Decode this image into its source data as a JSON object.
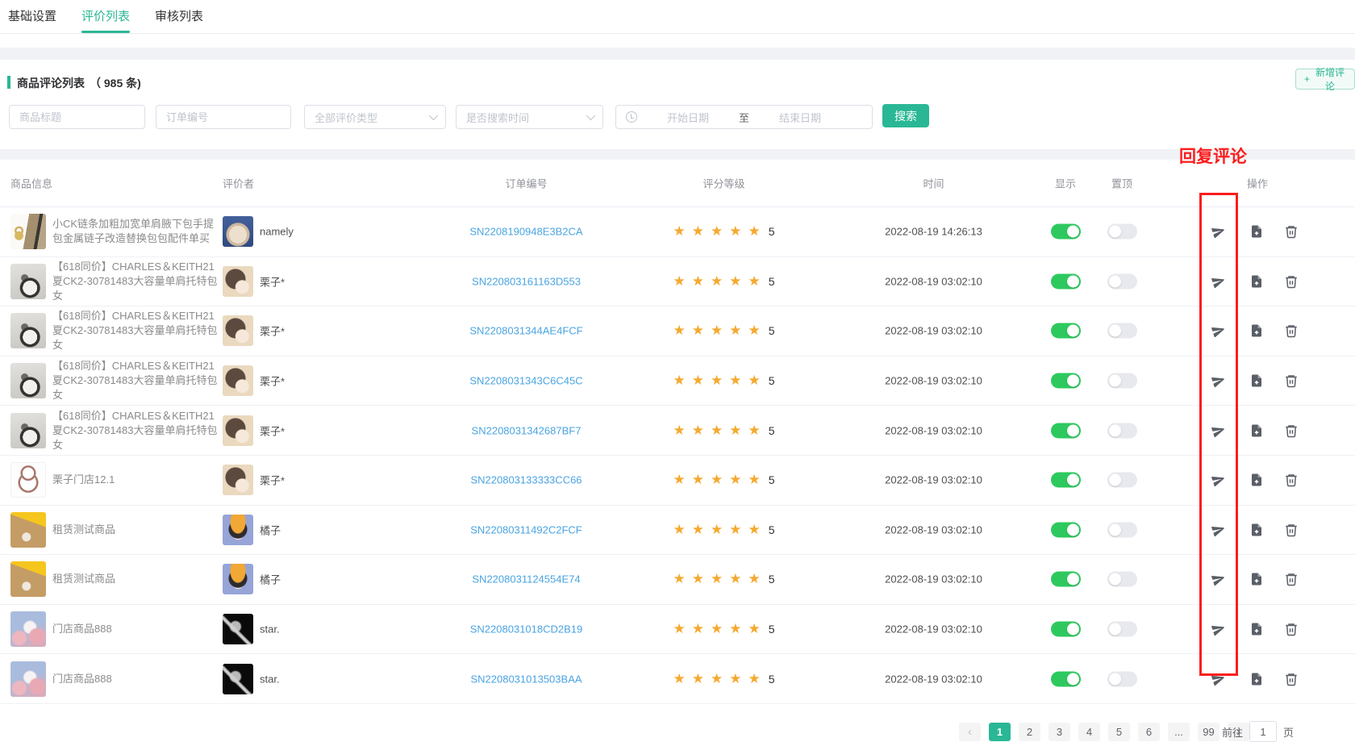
{
  "colors": {
    "accent_teal": "#2ab795",
    "toggle_on_green": "#2dc95f",
    "order_link_blue": "#4aa4e2",
    "star_orange": "#f5a92f",
    "annotation_red": "#fb1d1d"
  },
  "tabs": [
    {
      "label": "基础设置",
      "active": false
    },
    {
      "label": "评价列表",
      "active": true
    },
    {
      "label": "审核列表",
      "active": false
    }
  ],
  "panel": {
    "title": "商品评论列表",
    "count": "（ 985 条)",
    "add_button_plus": "+",
    "add_button": "新增评论"
  },
  "filters": {
    "product_title_placeholder": "商品标题",
    "order_no_placeholder": "订单编号",
    "type_select_value": "全部评价类型",
    "time_select_value": "是否搜索时间",
    "start_date_placeholder": "开始日期",
    "date_separator": "至",
    "end_date_placeholder": "结束日期",
    "search_label": "搜索"
  },
  "annotation": {
    "label": "回复评论"
  },
  "table": {
    "headers": [
      "商品信息",
      "评价者",
      "订单编号",
      "评分等级",
      "时间",
      "显示",
      "置顶",
      "操作"
    ],
    "rows": [
      {
        "title": "小CK链条加粗加宽单肩腋下包手提包金属链子改造替换包包配件单买",
        "image": "chain-bag",
        "avatar": "cat",
        "name": "namely",
        "order": "SN2208190948E3B2CA",
        "stars": 5,
        "score": "5",
        "time": "2022-08-19 14:26:13",
        "show": true,
        "pin": false
      },
      {
        "title": "【618同价】CHARLES＆KEITH21夏CK2-30781483大容量单肩托特包女",
        "image": "tote-bag",
        "avatar": "chestnut",
        "name": "栗子*",
        "order": "SN220803161163D553",
        "stars": 5,
        "score": "5",
        "time": "2022-08-19 03:02:10",
        "show": true,
        "pin": false
      },
      {
        "title": "【618同价】CHARLES＆KEITH21夏CK2-30781483大容量单肩托特包女",
        "image": "tote-bag",
        "avatar": "chestnut",
        "name": "栗子*",
        "order": "SN2208031344AE4FCF",
        "stars": 5,
        "score": "5",
        "time": "2022-08-19 03:02:10",
        "show": true,
        "pin": false
      },
      {
        "title": "【618同价】CHARLES＆KEITH21夏CK2-30781483大容量单肩托特包女",
        "image": "tote-bag",
        "avatar": "chestnut",
        "name": "栗子*",
        "order": "SN2208031343C6C45C",
        "stars": 5,
        "score": "5",
        "time": "2022-08-19 03:02:10",
        "show": true,
        "pin": false
      },
      {
        "title": "【618同价】CHARLES＆KEITH21夏CK2-30781483大容量单肩托特包女",
        "image": "tote-bag",
        "avatar": "chestnut",
        "name": "栗子*",
        "order": "SN2208031342687BF7",
        "stars": 5,
        "score": "5",
        "time": "2022-08-19 03:02:10",
        "show": true,
        "pin": false
      },
      {
        "title": "栗子门店12.1",
        "image": "bunny",
        "avatar": "chestnut",
        "name": "栗子*",
        "order": "SN220803133333CC66",
        "stars": 5,
        "score": "5",
        "time": "2022-08-19 03:02:10",
        "show": true,
        "pin": false
      },
      {
        "title": "租赁测试商品",
        "image": "sand",
        "avatar": "orange",
        "name": "橘子",
        "order": "SN22080311492C2FCF",
        "stars": 5,
        "score": "5",
        "time": "2022-08-19 03:02:10",
        "show": true,
        "pin": false
      },
      {
        "title": "租赁测试商品",
        "image": "sand",
        "avatar": "orange",
        "name": "橘子",
        "order": "SN2208031124554E74",
        "stars": 5,
        "score": "5",
        "time": "2022-08-19 03:02:10",
        "show": true,
        "pin": false
      },
      {
        "title": "门店商品888",
        "image": "clouds",
        "avatar": "dark",
        "name": "star.",
        "order": "SN2208031018CD2B19",
        "stars": 5,
        "score": "5",
        "time": "2022-08-19 03:02:10",
        "show": true,
        "pin": false
      },
      {
        "title": "门店商品888",
        "image": "clouds",
        "avatar": "dark",
        "name": "star.",
        "order": "SN2208031013503BAA",
        "stars": 5,
        "score": "5",
        "time": "2022-08-19 03:02:10",
        "show": true,
        "pin": false
      }
    ]
  },
  "pagination": {
    "prev": "‹",
    "next": "›",
    "pages": [
      "1",
      "2",
      "3",
      "4",
      "5",
      "6",
      "...",
      "99"
    ],
    "active_page": "1",
    "goto_label": "前往",
    "goto_value": "1",
    "page_unit": "页"
  }
}
